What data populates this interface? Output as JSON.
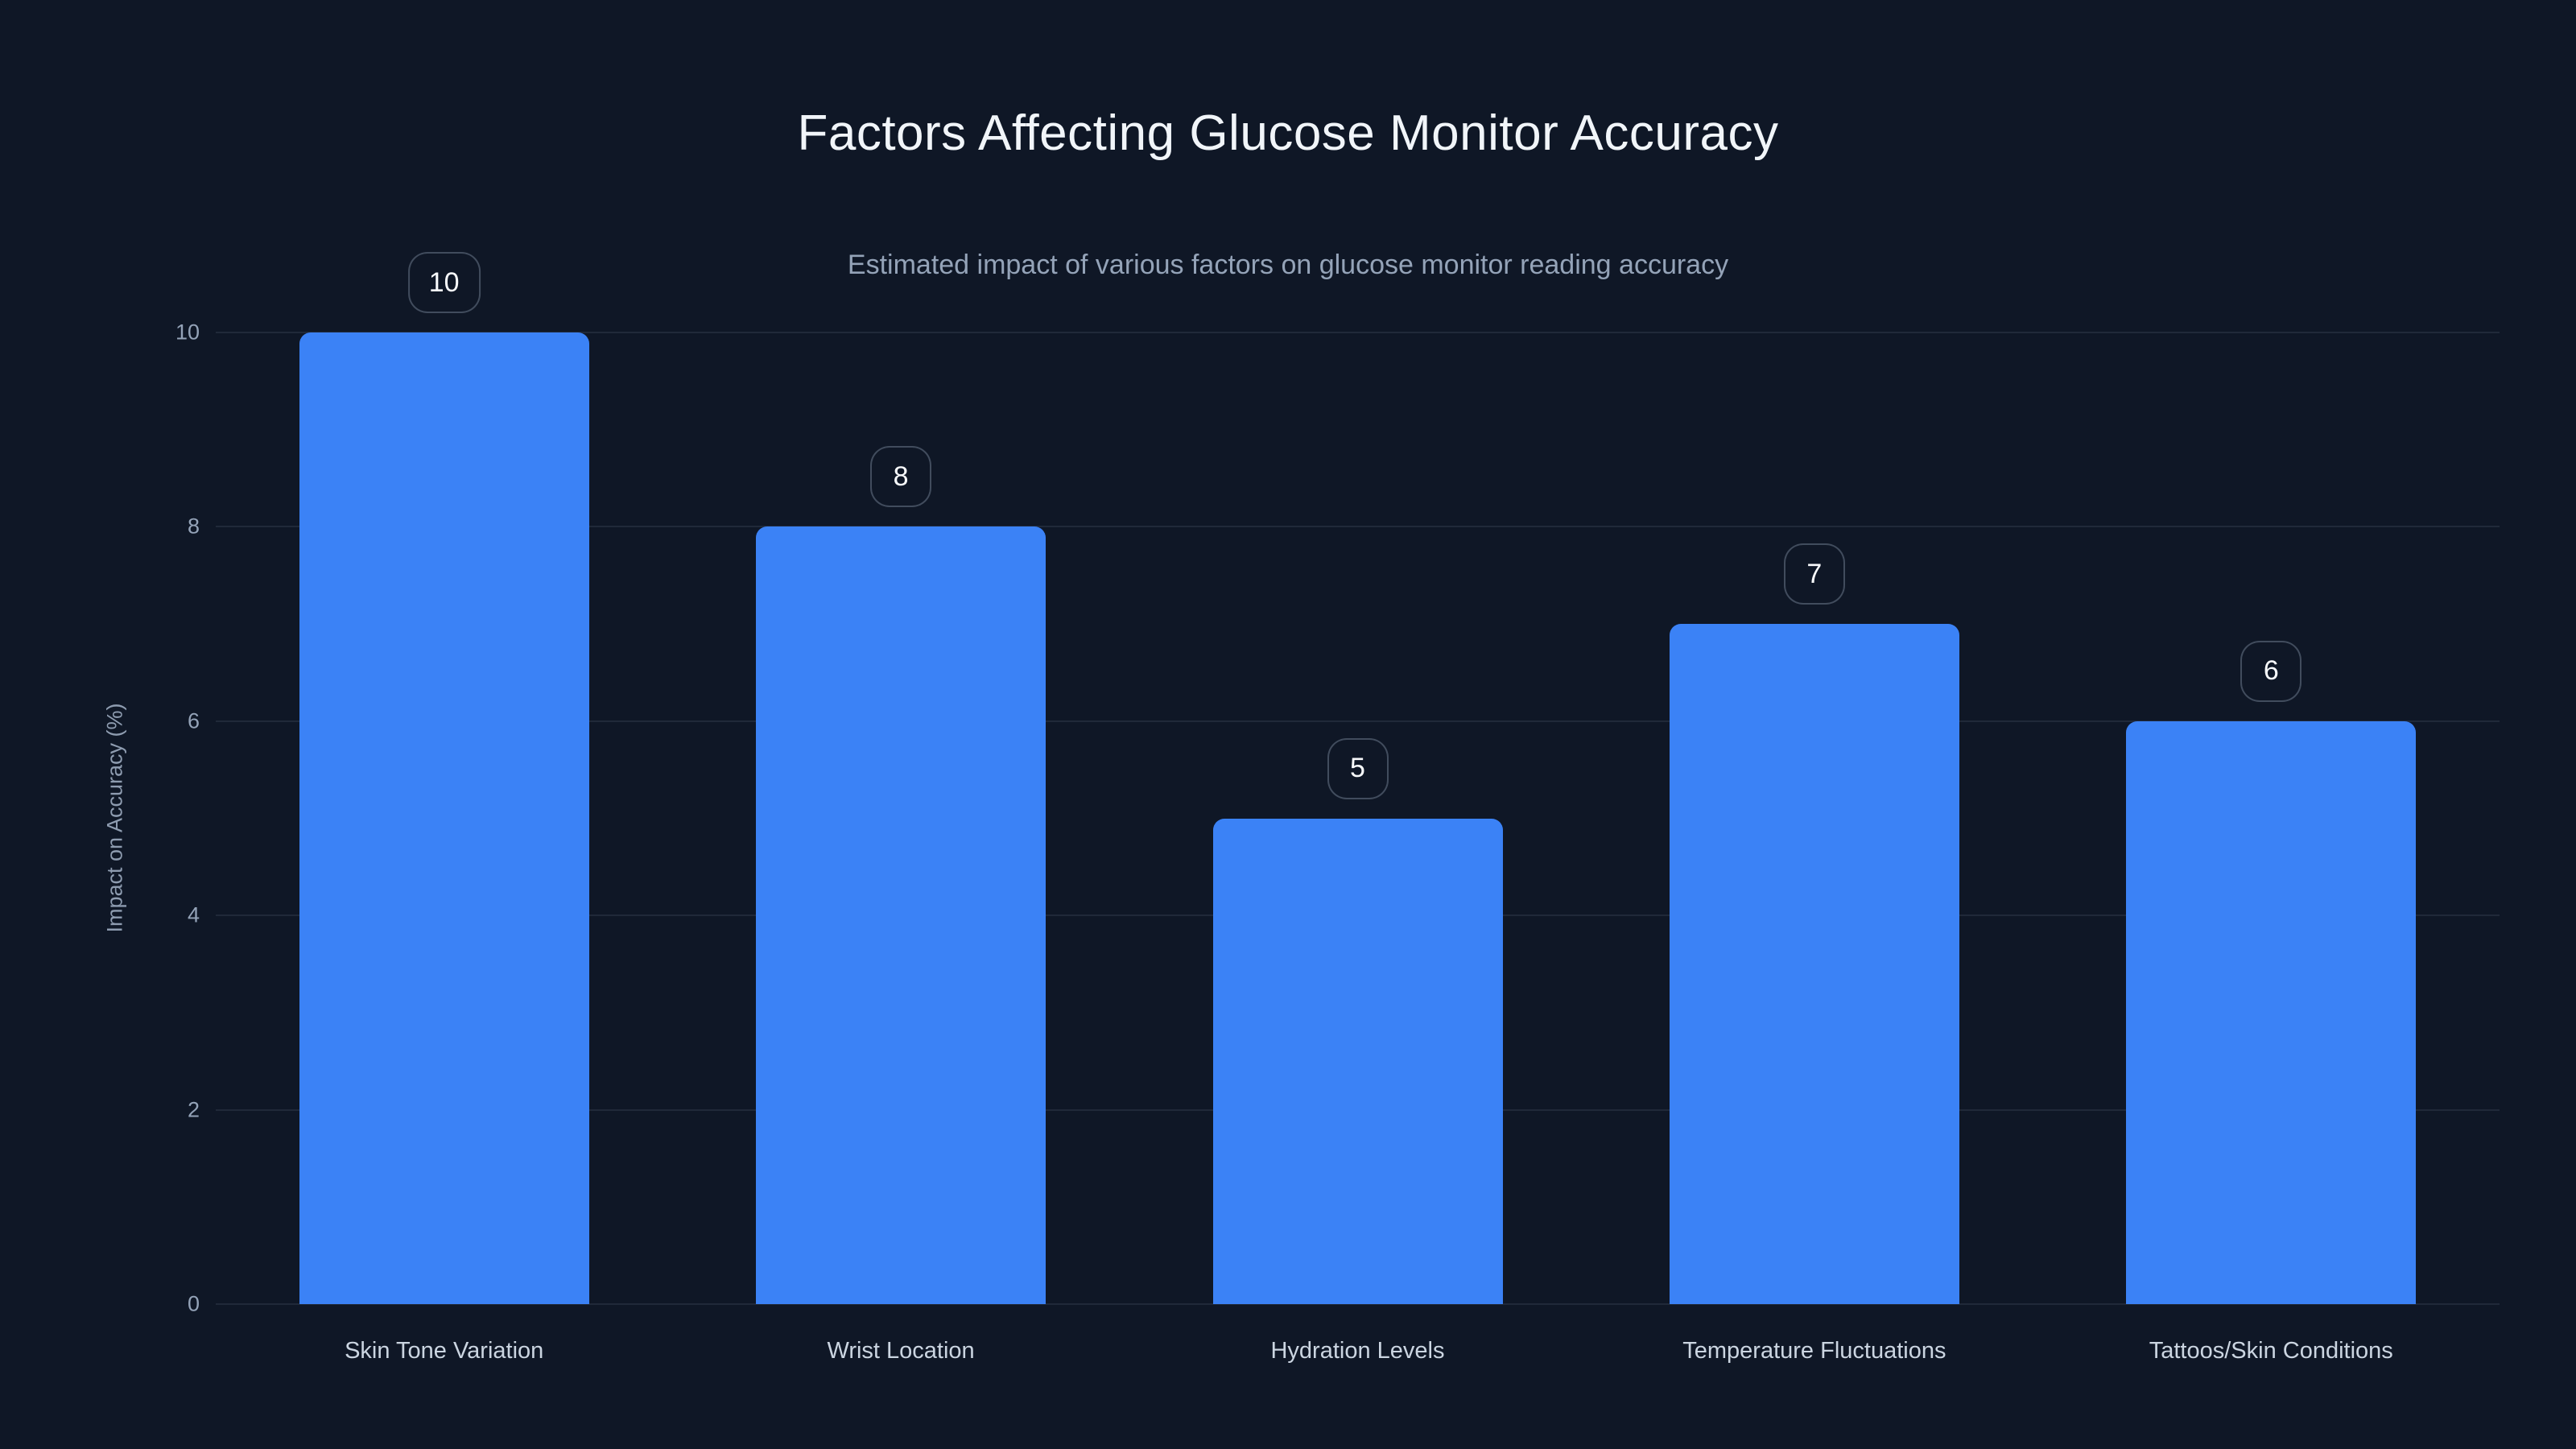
{
  "page": {
    "background_color": "#0f1726",
    "accent_color": "#3b82f6"
  },
  "chart_data": {
    "type": "bar",
    "title": "Factors Affecting Glucose Monitor Accuracy",
    "subtitle": "Estimated impact of various factors on glucose monitor reading accuracy",
    "categories": [
      "Skin Tone Variation",
      "Wrist Location",
      "Hydration Levels",
      "Temperature Fluctuations",
      "Tattoos/Skin Conditions"
    ],
    "values": [
      10,
      8,
      5,
      7,
      6
    ],
    "value_labels": [
      "10",
      "8",
      "5",
      "7",
      "6"
    ],
    "xlabel": "",
    "ylabel": "Impact on Accuracy (%)",
    "ylim": [
      0,
      10
    ],
    "yticks": [
      0,
      2,
      4,
      6,
      8,
      10
    ],
    "grid": true,
    "legend": false,
    "bar_color": "#3b82f6",
    "grid_color": "rgba(148,163,184,0.13)",
    "title_color": "#f1f5f9",
    "subtitle_color": "#94a3b8",
    "tick_label_color": "#94a3b8",
    "category_label_color": "#cbd5e1"
  }
}
